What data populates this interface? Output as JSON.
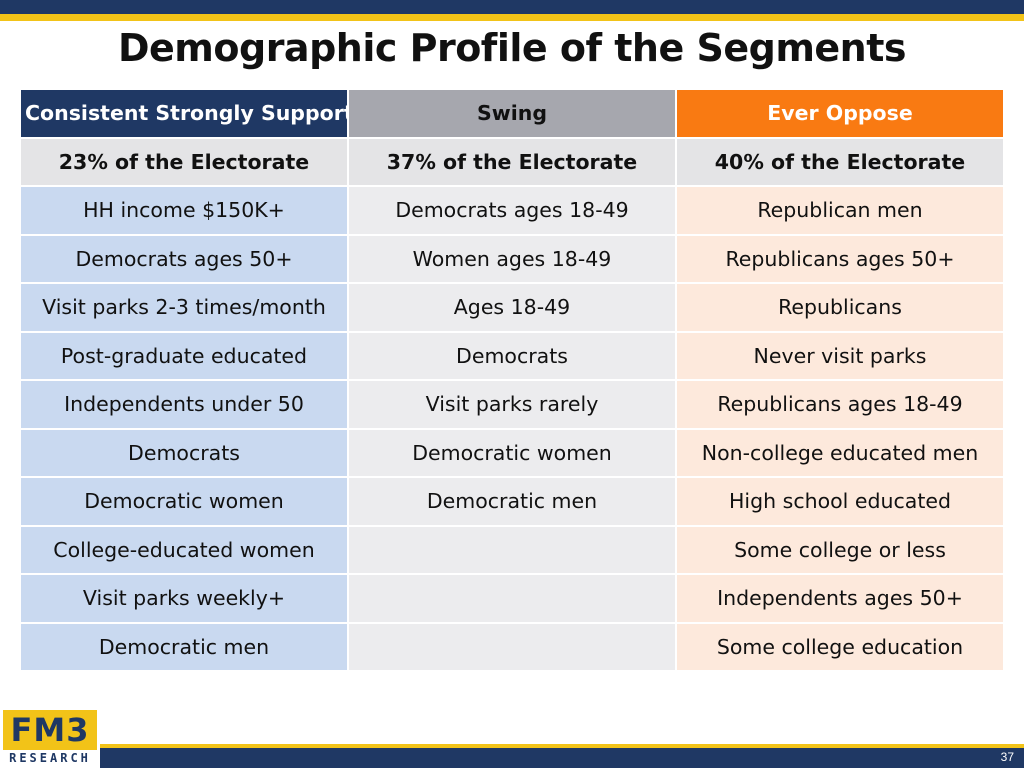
{
  "title": "Demographic Profile of the Segments",
  "columns": [
    {
      "header": "Consistent Strongly Support",
      "share": "23% of the Electorate"
    },
    {
      "header": "Swing",
      "share": "37% of the Electorate"
    },
    {
      "header": "Ever Oppose",
      "share": "40% of the Electorate"
    }
  ],
  "rows": [
    [
      "HH income $150K+",
      "Democrats ages 18-49",
      "Republican men"
    ],
    [
      "Democrats ages 50+",
      "Women ages 18-49",
      "Republicans ages 50+"
    ],
    [
      "Visit parks 2-3 times/month",
      "Ages 18-49",
      "Republicans"
    ],
    [
      "Post-graduate educated",
      "Democrats",
      "Never visit parks"
    ],
    [
      "Independents under 50",
      "Visit parks rarely",
      "Republicans ages 18-49"
    ],
    [
      "Democrats",
      "Democratic women",
      "Non-college educated men"
    ],
    [
      "Democratic women",
      "Democratic men",
      "High school educated"
    ],
    [
      "College-educated women",
      "",
      "Some college or less"
    ],
    [
      "Visit parks weekly+",
      "",
      "Independents ages 50+"
    ],
    [
      "Democratic men",
      "",
      "Some college education"
    ]
  ],
  "logo": {
    "main": "FM3",
    "sub": "RESEARCH"
  },
  "page_number": "37",
  "colors": {
    "navy": "#1f3864",
    "gold": "#f2c318",
    "orange": "#f97a12",
    "support_light": "#c9d9f0",
    "swing_light": "#ececee",
    "oppose_light": "#fde9dc"
  }
}
